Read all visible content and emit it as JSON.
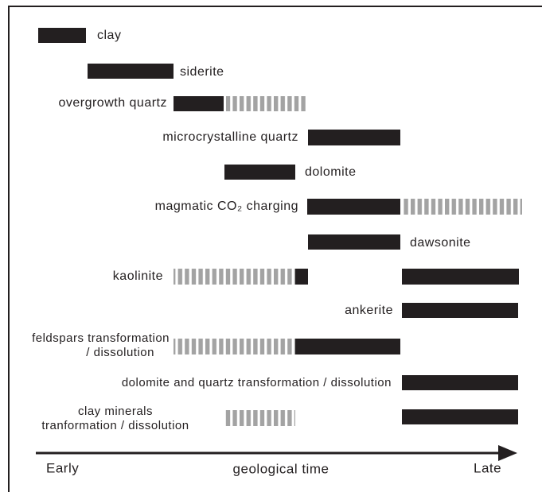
{
  "rows": [
    {
      "label": "clay"
    },
    {
      "label": "siderite"
    },
    {
      "label": "overgrowth quartz"
    },
    {
      "label": "microcrystalline quartz"
    },
    {
      "label": "dolomite"
    },
    {
      "label": "magmatic CO₂ charging"
    },
    {
      "label": "dawsonite"
    },
    {
      "label": "kaolinite"
    },
    {
      "label": "ankerite"
    },
    {
      "label_lines": [
        "feldspars transformation",
        "/ dissolution"
      ]
    },
    {
      "label": "dolomite and quartz transformation / dissolution"
    },
    {
      "label_lines": [
        "clay minerals",
        "tranformation / dissolution"
      ]
    }
  ],
  "axis": {
    "start": "Early",
    "title": "geological time",
    "end": "Late"
  }
}
